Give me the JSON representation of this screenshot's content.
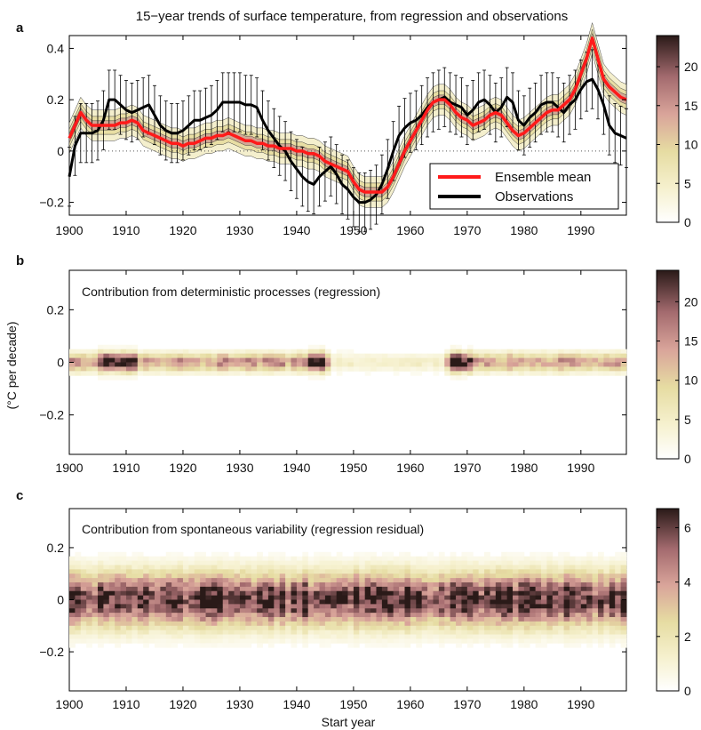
{
  "figure": {
    "title": "15−year trends of surface temperature, from regression and observations",
    "ylabel": "(°C per decade)",
    "xlabel": "Start year"
  },
  "chart_data": [
    {
      "panel": "a",
      "type": "line",
      "title": "15−year trends of surface temperature, from regression and observations",
      "xlim": [
        1900,
        1998
      ],
      "ylim": [
        -0.25,
        0.45
      ],
      "xticks": [
        "1900",
        "1910",
        "1920",
        "1930",
        "1940",
        "1950",
        "1960",
        "1970",
        "1980",
        "1990"
      ],
      "yticks": [
        "−0.2",
        "0",
        "0.2",
        "0.4"
      ],
      "legend_position": "bottom-right",
      "reference_line": {
        "y": 0,
        "style": "dotted"
      },
      "series": [
        {
          "name": "Ensemble mean",
          "color": "#ff1a1a",
          "x": [
            1900,
            1901,
            1902,
            1903,
            1904,
            1905,
            1906,
            1907,
            1908,
            1909,
            1910,
            1911,
            1912,
            1913,
            1914,
            1915,
            1916,
            1917,
            1918,
            1919,
            1920,
            1921,
            1922,
            1923,
            1924,
            1925,
            1926,
            1927,
            1928,
            1929,
            1930,
            1931,
            1932,
            1933,
            1934,
            1935,
            1936,
            1937,
            1938,
            1939,
            1940,
            1941,
            1942,
            1943,
            1944,
            1945,
            1946,
            1947,
            1948,
            1949,
            1950,
            1951,
            1952,
            1953,
            1954,
            1955,
            1956,
            1957,
            1958,
            1959,
            1960,
            1961,
            1962,
            1963,
            1964,
            1965,
            1966,
            1967,
            1968,
            1969,
            1970,
            1971,
            1972,
            1973,
            1974,
            1975,
            1976,
            1977,
            1978,
            1979,
            1980,
            1981,
            1982,
            1983,
            1984,
            1985,
            1986,
            1987,
            1988,
            1989,
            1990,
            1991,
            1992,
            1993,
            1994,
            1995,
            1996,
            1997,
            1998
          ],
          "values": [
            0.05,
            0.1,
            0.15,
            0.12,
            0.1,
            0.1,
            0.1,
            0.1,
            0.1,
            0.11,
            0.11,
            0.12,
            0.11,
            0.08,
            0.07,
            0.06,
            0.05,
            0.04,
            0.03,
            0.03,
            0.02,
            0.03,
            0.03,
            0.04,
            0.05,
            0.05,
            0.06,
            0.06,
            0.07,
            0.06,
            0.05,
            0.04,
            0.04,
            0.03,
            0.03,
            0.02,
            0.02,
            0.01,
            0.01,
            0.01,
            0.0,
            0.0,
            -0.01,
            -0.01,
            -0.02,
            -0.04,
            -0.05,
            -0.06,
            -0.07,
            -0.08,
            -0.12,
            -0.15,
            -0.16,
            -0.16,
            -0.16,
            -0.16,
            -0.14,
            -0.1,
            -0.05,
            0.0,
            0.04,
            0.08,
            0.12,
            0.16,
            0.19,
            0.2,
            0.2,
            0.18,
            0.15,
            0.13,
            0.12,
            0.1,
            0.11,
            0.12,
            0.14,
            0.15,
            0.14,
            0.11,
            0.08,
            0.06,
            0.07,
            0.09,
            0.11,
            0.13,
            0.15,
            0.16,
            0.16,
            0.18,
            0.2,
            0.24,
            0.3,
            0.36,
            0.44,
            0.36,
            0.28,
            0.25,
            0.23,
            0.21,
            0.2
          ]
        },
        {
          "name": "Observations",
          "color": "#000000",
          "x": [
            1900,
            1901,
            1902,
            1903,
            1904,
            1905,
            1906,
            1907,
            1908,
            1909,
            1910,
            1911,
            1912,
            1913,
            1914,
            1915,
            1916,
            1917,
            1918,
            1919,
            1920,
            1921,
            1922,
            1923,
            1924,
            1925,
            1926,
            1927,
            1928,
            1929,
            1930,
            1931,
            1932,
            1933,
            1934,
            1935,
            1936,
            1937,
            1938,
            1939,
            1940,
            1941,
            1942,
            1943,
            1944,
            1945,
            1946,
            1947,
            1948,
            1949,
            1950,
            1951,
            1952,
            1953,
            1954,
            1955,
            1956,
            1957,
            1958,
            1959,
            1960,
            1961,
            1962,
            1963,
            1964,
            1965,
            1966,
            1967,
            1968,
            1969,
            1970,
            1971,
            1972,
            1973,
            1974,
            1975,
            1976,
            1977,
            1978,
            1979,
            1980,
            1981,
            1982,
            1983,
            1984,
            1985,
            1986,
            1987,
            1988,
            1989,
            1990,
            1991,
            1992,
            1993,
            1994,
            1995,
            1996,
            1997,
            1998
          ],
          "values": [
            -0.1,
            0.02,
            0.07,
            0.07,
            0.07,
            0.08,
            0.12,
            0.2,
            0.2,
            0.18,
            0.16,
            0.15,
            0.16,
            0.17,
            0.18,
            0.14,
            0.1,
            0.08,
            0.07,
            0.07,
            0.08,
            0.1,
            0.12,
            0.12,
            0.13,
            0.14,
            0.16,
            0.19,
            0.19,
            0.19,
            0.19,
            0.18,
            0.18,
            0.17,
            0.12,
            0.08,
            0.05,
            0.02,
            0.0,
            -0.04,
            -0.07,
            -0.1,
            -0.12,
            -0.13,
            -0.1,
            -0.08,
            -0.06,
            -0.09,
            -0.13,
            -0.15,
            -0.18,
            -0.2,
            -0.2,
            -0.19,
            -0.17,
            -0.13,
            -0.07,
            0.0,
            0.06,
            0.09,
            0.11,
            0.12,
            0.14,
            0.17,
            0.19,
            0.2,
            0.21,
            0.19,
            0.18,
            0.17,
            0.14,
            0.16,
            0.19,
            0.2,
            0.18,
            0.15,
            0.17,
            0.21,
            0.19,
            0.12,
            0.1,
            0.13,
            0.15,
            0.18,
            0.19,
            0.19,
            0.17,
            0.15,
            0.18,
            0.2,
            0.24,
            0.27,
            0.28,
            0.24,
            0.18,
            0.1,
            0.07,
            0.06,
            0.05
          ]
        }
      ]
    },
    {
      "panel": "b",
      "type": "heatmap",
      "annotation": "Contribution from deterministic processes (regression)",
      "xlim": [
        1900,
        1998
      ],
      "ylim": [
        -0.35,
        0.35
      ],
      "xticks": [
        "1900",
        "1910",
        "1920",
        "1930",
        "1940",
        "1950",
        "1960",
        "1970",
        "1980",
        "1990"
      ],
      "yticks": [
        "−0.2",
        "0",
        "0.2"
      ],
      "colorbar_ticks": [
        "0",
        "5",
        "10",
        "15",
        "20"
      ],
      "colorbar_max": 24
    },
    {
      "panel": "c",
      "type": "heatmap",
      "annotation": "Contribution from spontaneous variability (regression residual)",
      "xlim": [
        1900,
        1998
      ],
      "ylim": [
        -0.35,
        0.35
      ],
      "xticks": [
        "1900",
        "1910",
        "1920",
        "1930",
        "1940",
        "1950",
        "1960",
        "1970",
        "1980",
        "1990"
      ],
      "yticks": [
        "−0.2",
        "0",
        "0.2"
      ],
      "colorbar_ticks": [
        "0",
        "2",
        "4",
        "6"
      ],
      "colorbar_max": 6.7
    }
  ]
}
